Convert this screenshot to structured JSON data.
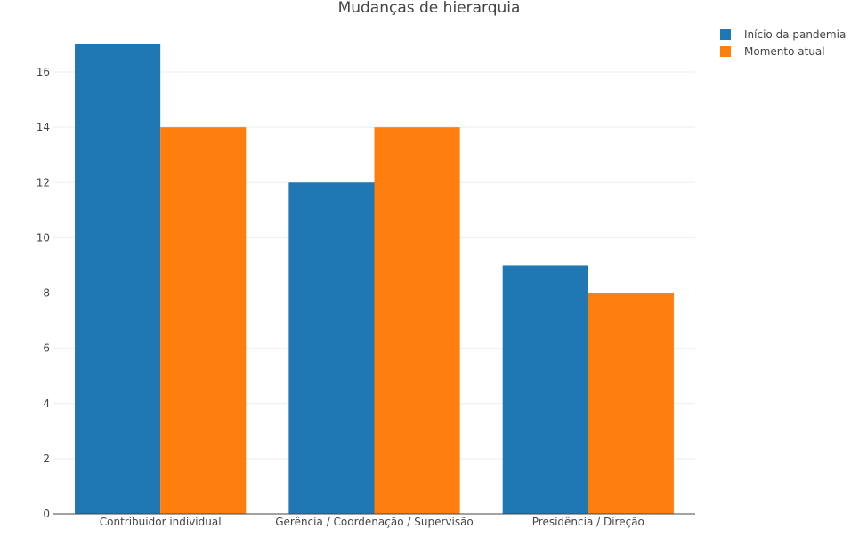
{
  "chart_data": {
    "type": "bar",
    "title": "Mudanças de hierarquia",
    "xlabel": "",
    "ylabel": "",
    "categories": [
      "Contribuidor individual",
      "Gerência / Coordenação / Supervisão",
      "Presidência / Direção"
    ],
    "series": [
      {
        "name": "Início da pandemia",
        "values": [
          17,
          12,
          9
        ],
        "color": "#1f77b4"
      },
      {
        "name": "Momento atual",
        "values": [
          14,
          14,
          8
        ],
        "color": "#ff7f0e"
      }
    ],
    "ylim": [
      0,
      17.9
    ],
    "yticks": [
      0,
      2,
      4,
      6,
      8,
      10,
      12,
      14,
      16
    ],
    "grid": true,
    "legend_position": "top-right"
  }
}
